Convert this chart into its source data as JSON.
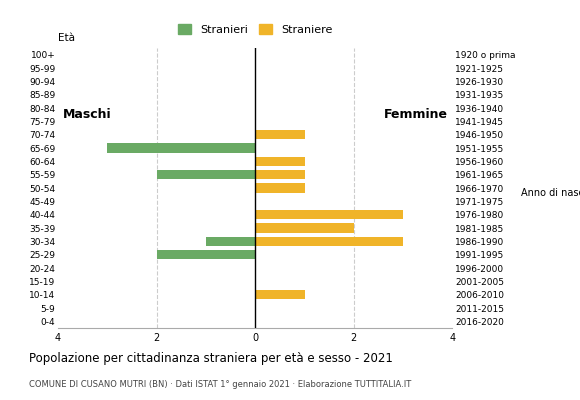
{
  "age_groups": [
    "100+",
    "95-99",
    "90-94",
    "85-89",
    "80-84",
    "75-79",
    "70-74",
    "65-69",
    "60-64",
    "55-59",
    "50-54",
    "45-49",
    "40-44",
    "35-39",
    "30-34",
    "25-29",
    "20-24",
    "15-19",
    "10-14",
    "5-9",
    "0-4"
  ],
  "birth_years": [
    "1920 o prima",
    "1921-1925",
    "1926-1930",
    "1931-1935",
    "1936-1940",
    "1941-1945",
    "1946-1950",
    "1951-1955",
    "1956-1960",
    "1961-1965",
    "1966-1970",
    "1971-1975",
    "1976-1980",
    "1981-1985",
    "1986-1990",
    "1991-1995",
    "1996-2000",
    "2001-2005",
    "2006-2010",
    "2011-2015",
    "2016-2020"
  ],
  "males": [
    0,
    0,
    0,
    0,
    0,
    0,
    0,
    3,
    0,
    2,
    0,
    0,
    0,
    0,
    1,
    2,
    0,
    0,
    0,
    0,
    0
  ],
  "females": [
    0,
    0,
    0,
    0,
    0,
    0,
    1,
    0,
    1,
    1,
    1,
    0,
    3,
    2,
    3,
    0,
    0,
    0,
    1,
    0,
    0
  ],
  "color_males": "#6aaa64",
  "color_females": "#f0b429",
  "title": "Popolazione per cittadinanza straniera per età e sesso - 2021",
  "subtitle": "COMUNE DI CUSANO MUTRI (BN) · Dati ISTAT 1° gennaio 2021 · Elaborazione TUTTITALIA.IT",
  "label_eta": "Età",
  "label_anno": "Anno di nascita",
  "legend_males": "Stranieri",
  "legend_females": "Straniere",
  "label_maschi": "Maschi",
  "label_femmine": "Femmine",
  "xlim": 4,
  "background_color": "#ffffff",
  "grid_color": "#cccccc"
}
